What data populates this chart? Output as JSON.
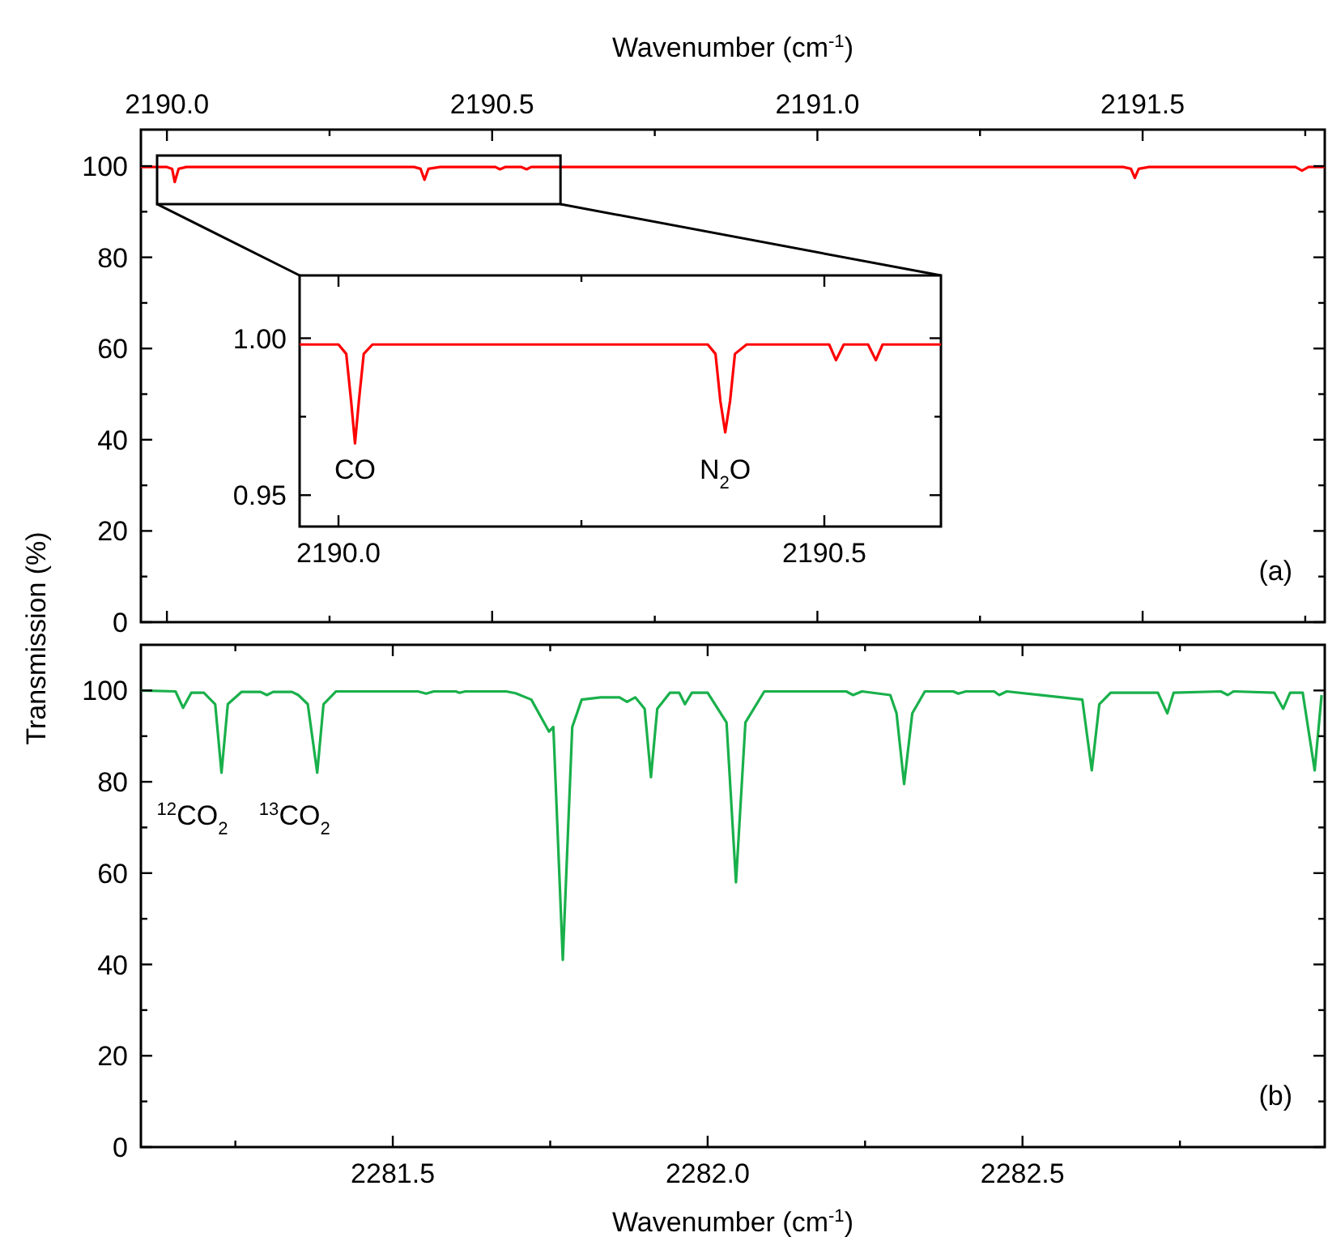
{
  "chart_data": [
    {
      "type": "line",
      "xlabel": "Wavenumber (cm$^{-1}$)",
      "ylabel": "Transmission (%)",
      "xlim": [
        2189.96,
        2191.78
      ],
      "xticks": [
        {
          "value": 2190.0,
          "label": "2190.0"
        },
        {
          "value": 2190.25,
          "label": null
        },
        {
          "value": 2190.5,
          "label": "2190.5"
        },
        {
          "value": 2190.75,
          "label": null
        },
        {
          "value": 2191.0,
          "label": "2191.0"
        },
        {
          "value": 2191.25,
          "label": null
        },
        {
          "value": 2191.5,
          "label": "2191.5"
        },
        {
          "value": 2191.75,
          "label": null
        }
      ],
      "ylim": [
        0,
        108
      ],
      "yticks": [
        0,
        {
          "value": 10,
          "label": null
        },
        20,
        {
          "value": 30,
          "label": null
        },
        40,
        {
          "value": 50,
          "label": null
        },
        60,
        {
          "value": 70,
          "label": null
        },
        80,
        {
          "value": 90,
          "label": null
        },
        100
      ],
      "annotations": [
        "(a)"
      ],
      "series": [
        {
          "color": "#ff0000",
          "x": [
            2189.96,
            2190.0,
            2190.008,
            2190.012,
            2190.018,
            2190.03,
            2190.38,
            2190.39,
            2190.396,
            2190.402,
            2190.42,
            2190.505,
            2190.512,
            2190.52,
            2190.545,
            2190.553,
            2190.56,
            2191.47,
            2191.482,
            2191.488,
            2191.494,
            2191.51,
            2191.735,
            2191.745,
            2191.755,
            2191.78
          ],
          "values": [
            99.8,
            99.8,
            99.4,
            96.5,
            99.4,
            99.8,
            99.8,
            99.4,
            97,
            99.4,
            99.8,
            99.8,
            99.3,
            99.8,
            99.8,
            99.3,
            99.8,
            99.8,
            99.4,
            97.4,
            99.4,
            99.8,
            99.8,
            99,
            99.8,
            99.8
          ]
        }
      ]
    },
    {
      "type": "line",
      "xlim": [
        2189.96,
        2190.62
      ],
      "xticks": [
        {
          "value": 2190.0,
          "label": "2190.0"
        },
        {
          "value": 2190.25,
          "label": null
        },
        {
          "value": 2190.5,
          "label": "2190.5"
        }
      ],
      "ylim": [
        0.94,
        1.02
      ],
      "yticks": [
        {
          "value": 0.95,
          "label": "0.95"
        },
        {
          "value": 0.975,
          "label": null
        },
        {
          "value": 1.0,
          "label": "1.00"
        }
      ],
      "annotations": [
        {
          "text": "CO",
          "x": 2190.017,
          "y": 0.9665
        },
        {
          "text": "N$_{2}$O",
          "x": 2190.398,
          "y": 0.97
        }
      ],
      "series": [
        {
          "color": "#ff0000",
          "x": [
            2189.96,
            2190.0,
            2190.008,
            2190.013,
            2190.017,
            2190.021,
            2190.026,
            2190.035,
            2190.38,
            2190.388,
            2190.393,
            2190.398,
            2190.403,
            2190.408,
            2190.42,
            2190.505,
            2190.512,
            2190.52,
            2190.545,
            2190.553,
            2190.56,
            2190.62
          ],
          "values": [
            0.998,
            0.998,
            0.995,
            0.98,
            0.9665,
            0.98,
            0.995,
            0.998,
            0.998,
            0.995,
            0.98,
            0.97,
            0.98,
            0.995,
            0.998,
            0.998,
            0.993,
            0.998,
            0.998,
            0.993,
            0.998,
            0.998
          ]
        }
      ]
    },
    {
      "type": "line",
      "xlabel": "Wavenumber (cm$^{-1}$)",
      "xlim": [
        2281.1,
        2282.98
      ],
      "xticks": [
        {
          "value": 2281.25,
          "label": null
        },
        2281.5,
        {
          "value": 2281.75,
          "label": null
        },
        {
          "value": 2282.0,
          "label": "2282.0"
        },
        {
          "value": 2282.25,
          "label": null
        },
        2282.5,
        {
          "value": 2282.75,
          "label": null
        }
      ],
      "ylim": [
        0,
        110
      ],
      "yticks": [
        0,
        {
          "value": 10,
          "label": null
        },
        20,
        {
          "value": 30,
          "label": null
        },
        40,
        {
          "value": 50,
          "label": null
        },
        60,
        {
          "value": 70,
          "label": null
        },
        80,
        {
          "value": 90,
          "label": null
        },
        100
      ],
      "annotations": [
        {
          "text": "$^{12}$CO$_{2}$",
          "x": 2281.228,
          "y": 82
        },
        {
          "text": "$^{13}$CO$_{2}$",
          "x": 2281.38,
          "y": 82
        },
        "(b)"
      ],
      "series": [
        {
          "color": "#19b04b",
          "x": [
            2281.1,
            2281.155,
            2281.167,
            2281.18,
            2281.2,
            2281.218,
            2281.228,
            2281.238,
            2281.26,
            2281.29,
            2281.3,
            2281.31,
            2281.34,
            2281.35,
            2281.365,
            2281.38,
            2281.39,
            2281.41,
            2281.54,
            2281.553,
            2281.565,
            2281.6,
            2281.606,
            2281.615,
            2281.68,
            2281.695,
            2281.72,
            2281.74,
            2281.748,
            2281.755,
            2281.77,
            2281.785,
            2281.8,
            2281.83,
            2281.86,
            2281.872,
            2281.885,
            2281.9,
            2281.91,
            2281.92,
            2281.94,
            2281.955,
            2281.964,
            2281.975,
            2282.0,
            2282.03,
            2282.045,
            2282.06,
            2282.09,
            2282.22,
            2282.231,
            2282.245,
            2282.29,
            2282.3,
            2282.312,
            2282.325,
            2282.345,
            2282.39,
            2282.398,
            2282.41,
            2282.455,
            2282.463,
            2282.475,
            2282.595,
            2282.61,
            2282.622,
            2282.64,
            2282.715,
            2282.73,
            2282.74,
            2282.815,
            2282.826,
            2282.835,
            2282.9,
            2282.914,
            2282.925,
            2282.945,
            2282.964,
            2282.975
          ],
          "values": [
            100,
            99.8,
            96.2,
            99.5,
            99.5,
            97,
            82,
            97,
            99.7,
            99.7,
            99,
            99.7,
            99.7,
            99,
            97,
            82,
            97,
            99.8,
            99.8,
            99.3,
            99.8,
            99.8,
            99.5,
            99.8,
            99.8,
            99.4,
            98,
            93,
            91,
            92,
            41,
            92,
            98,
            98.5,
            98.5,
            97.5,
            98.5,
            96,
            81,
            96,
            99.5,
            99.5,
            97,
            99.5,
            99.5,
            93,
            58,
            93,
            99.8,
            99.8,
            99,
            99.8,
            99,
            95,
            79.5,
            95,
            99.8,
            99.8,
            99.3,
            99.8,
            99.8,
            99,
            99.8,
            98,
            82.5,
            97,
            99.5,
            99.5,
            95,
            99.5,
            99.8,
            99,
            99.8,
            99.5,
            96,
            99.5,
            99.5,
            82.5,
            99
          ]
        }
      ]
    }
  ]
}
